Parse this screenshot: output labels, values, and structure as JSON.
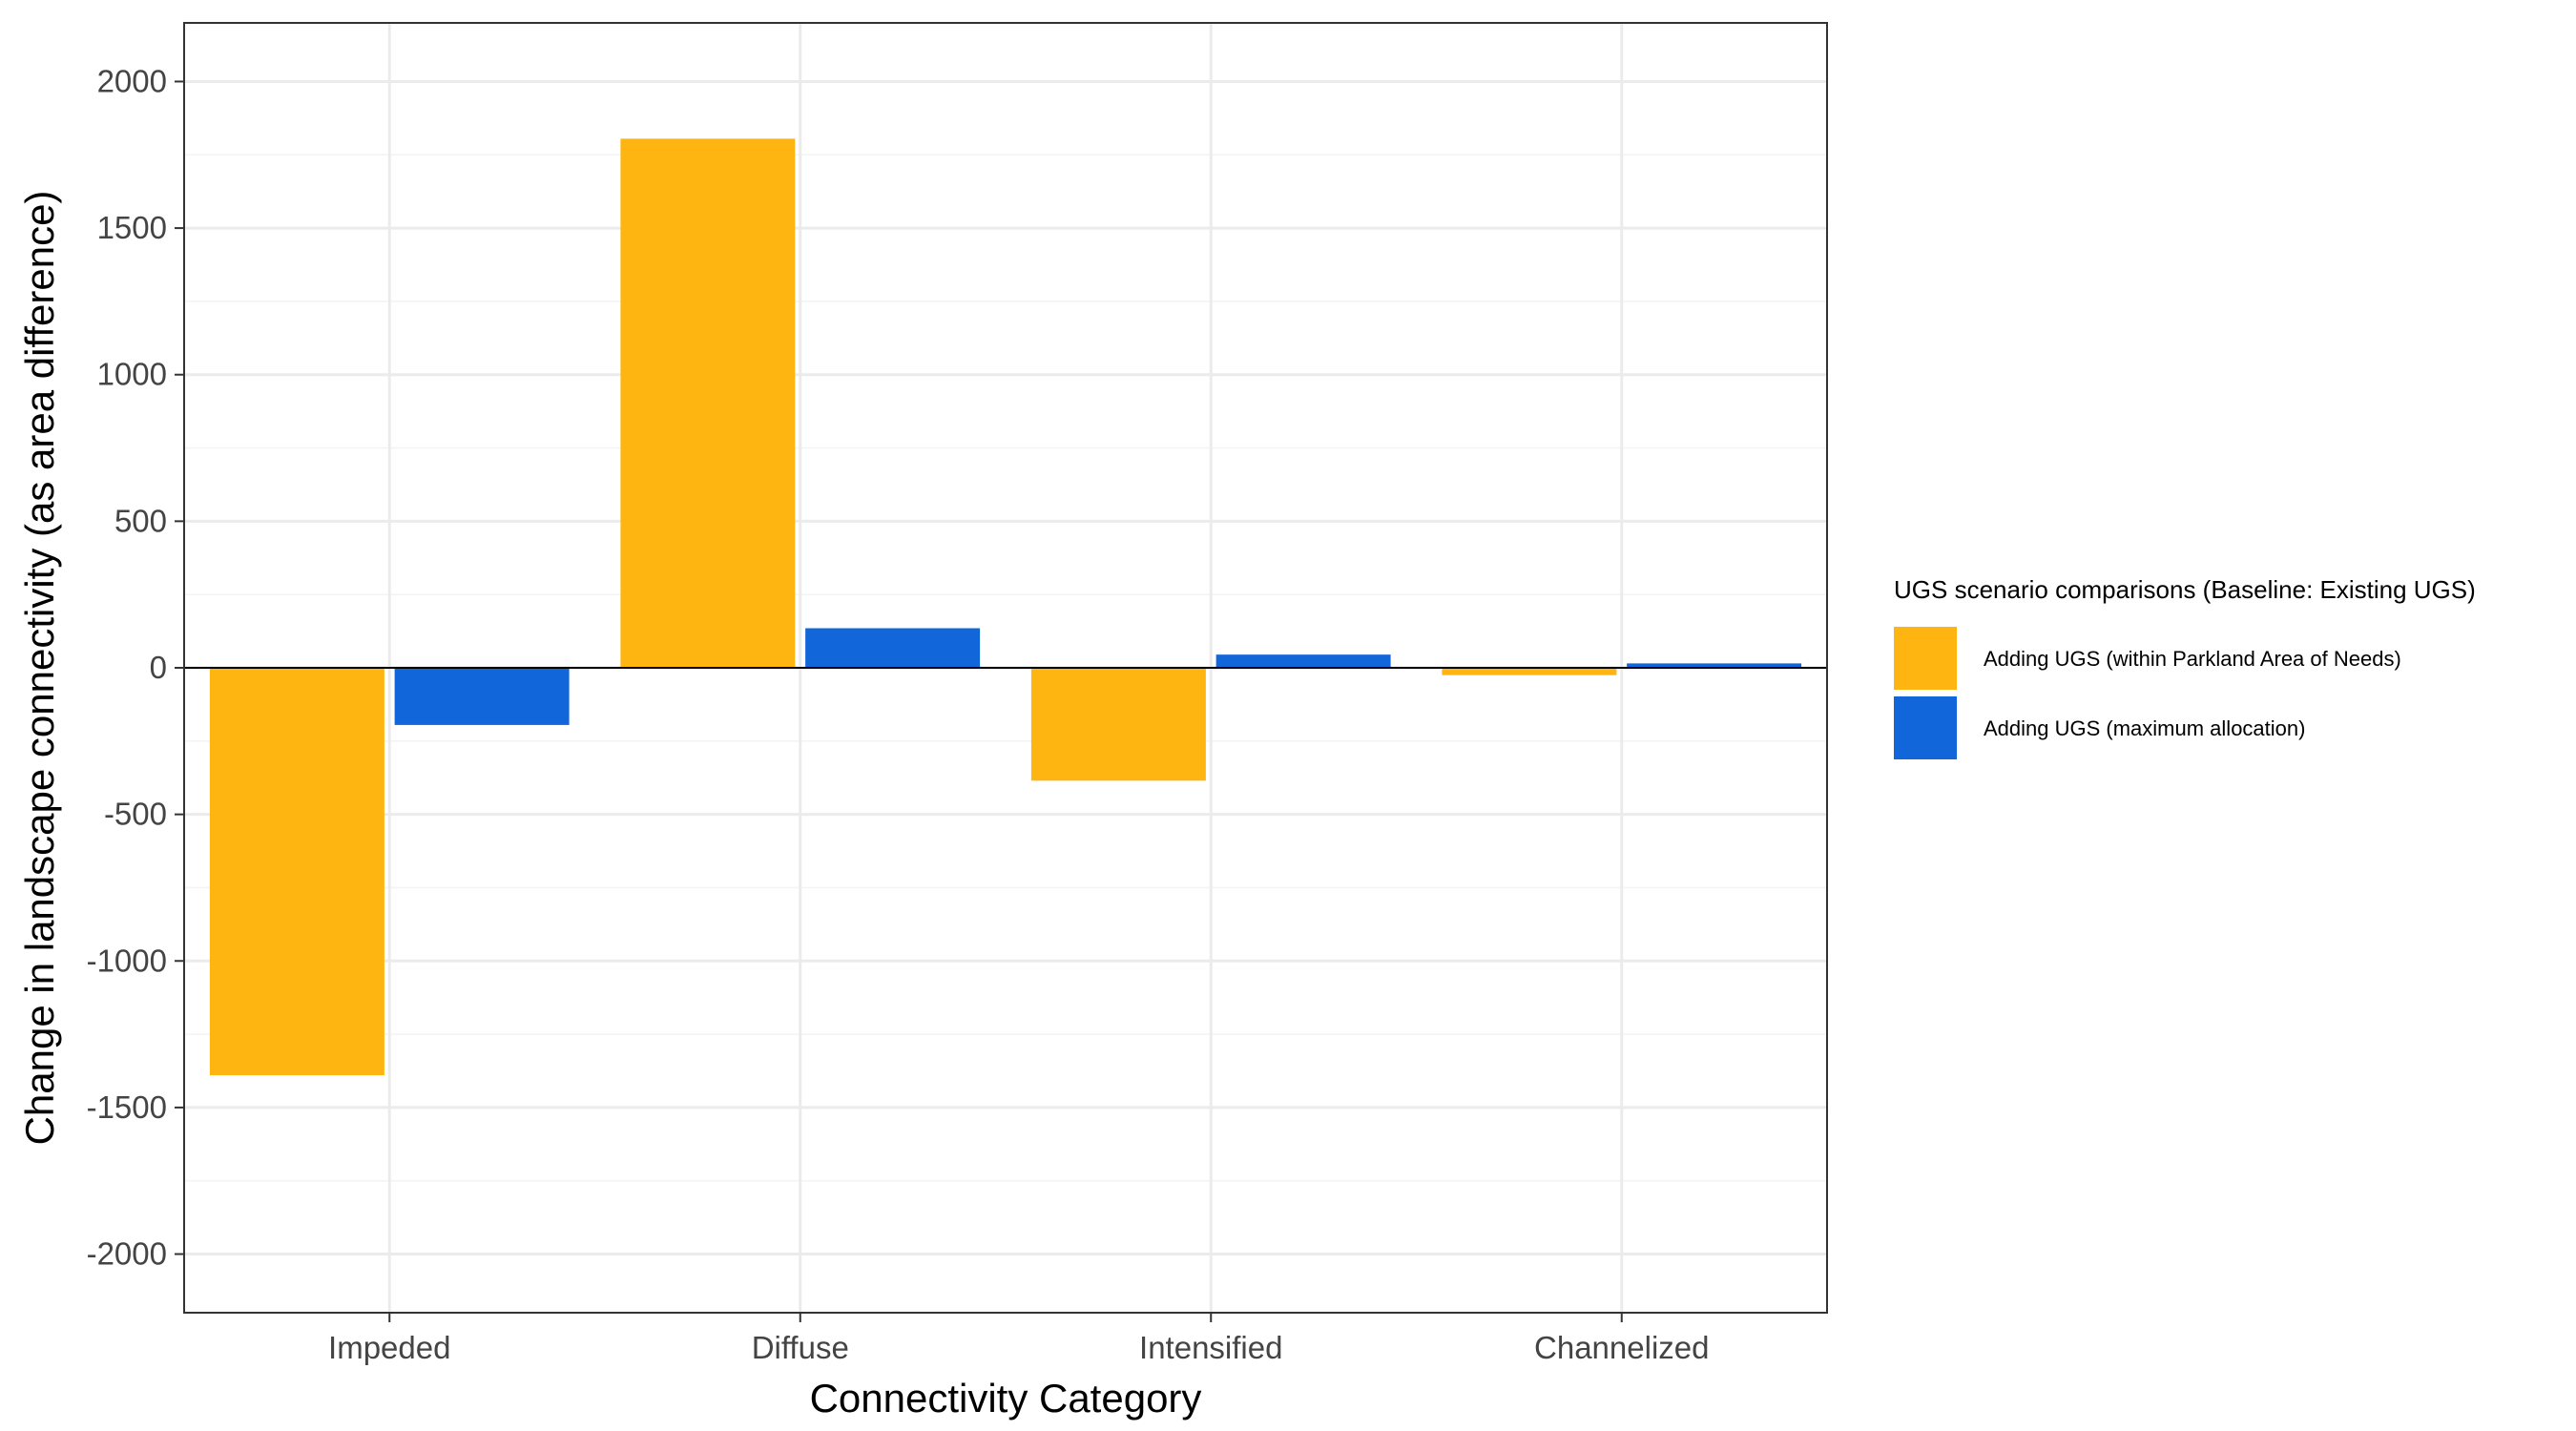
{
  "chart_data": {
    "type": "bar",
    "xlabel": "Connectivity Category",
    "ylabel": "Change in landscape connectivity (as area difference)",
    "categories": [
      "Impeded",
      "Diffuse",
      "Intensified",
      "Channelized"
    ],
    "series": [
      {
        "name": "Adding UGS (within Parkland Area of Needs)",
        "color": "#FFB511",
        "values": [
          -1390,
          1805,
          -385,
          -25
        ]
      },
      {
        "name": "Adding UGS (maximum allocation)",
        "color": "#1167D9",
        "values": [
          -195,
          135,
          45,
          15
        ]
      }
    ],
    "ylim": [
      -2200,
      2200
    ],
    "yticks": [
      2000,
      1500,
      1000,
      500,
      0,
      -500,
      -1000,
      -1500,
      -2000
    ],
    "grid": true,
    "legend": {
      "title": "UGS scenario comparisons (Baseline: Existing UGS)",
      "position": "right"
    }
  }
}
